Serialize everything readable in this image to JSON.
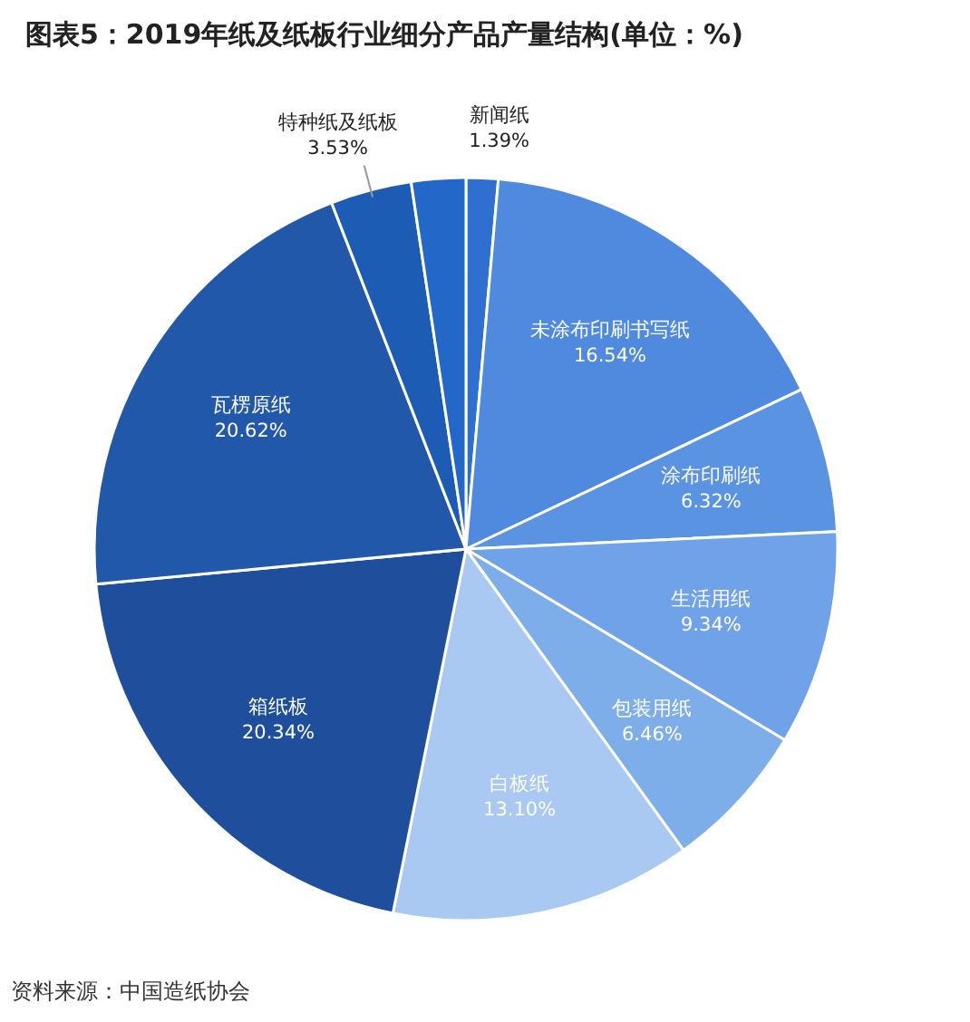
{
  "chart_data": {
    "type": "pie",
    "title": "图表5：2019年纸及纸板行业细分产品产量结构(单位：%)",
    "categories": [
      "新闻纸",
      "未涂布印刷书写纸",
      "涂布印刷纸",
      "生活用纸",
      "包装用纸",
      "白板纸",
      "箱纸板",
      "瓦楞原纸",
      "特种纸及纸板",
      null
    ],
    "values": [
      1.39,
      16.54,
      6.32,
      9.34,
      6.46,
      13.1,
      20.34,
      20.62,
      3.53,
      2.36
    ],
    "value_labels": [
      "1.39%",
      "16.54%",
      "6.32%",
      "9.34%",
      "6.46%",
      "13.10%",
      "20.34%",
      "20.62%",
      "3.53%",
      null
    ],
    "colors": [
      "#2f6fd0",
      "#4f8ade",
      "#5a93e2",
      "#6fa2e8",
      "#7eaeea",
      "#a9c8f2",
      "#1f4f9c",
      "#2158aa",
      "#1d5cb4",
      "#2367c8"
    ],
    "annotations": [
      "资料来源：中国造纸协会"
    ]
  }
}
